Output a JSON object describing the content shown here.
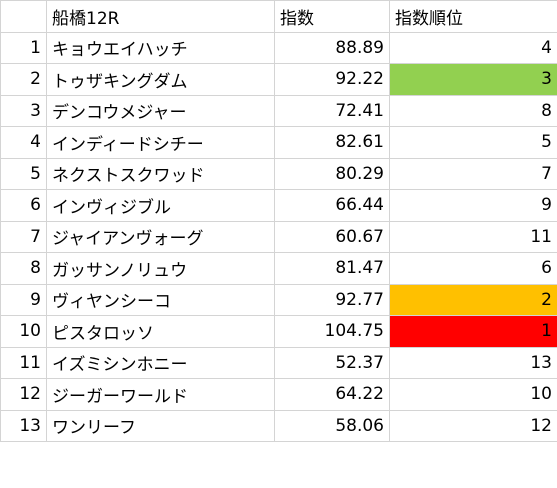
{
  "header": {
    "num": "",
    "name": "船橋12R",
    "index": "指数",
    "rank": "指数順位"
  },
  "rows": [
    {
      "num": "1",
      "name": "キョウエイハッチ",
      "index": "88.89",
      "rank": "4",
      "highlight": ""
    },
    {
      "num": "2",
      "name": "トゥザキングダム",
      "index": "92.22",
      "rank": "3",
      "highlight": "green"
    },
    {
      "num": "3",
      "name": "デンコウメジャー",
      "index": "72.41",
      "rank": "8",
      "highlight": ""
    },
    {
      "num": "4",
      "name": "インディードシチー",
      "index": "82.61",
      "rank": "5",
      "highlight": ""
    },
    {
      "num": "5",
      "name": "ネクストスクワッド",
      "index": "80.29",
      "rank": "7",
      "highlight": ""
    },
    {
      "num": "6",
      "name": "インヴィジブル",
      "index": "66.44",
      "rank": "9",
      "highlight": ""
    },
    {
      "num": "7",
      "name": "ジャイアンヴォーグ",
      "index": "60.67",
      "rank": "11",
      "highlight": ""
    },
    {
      "num": "8",
      "name": "ガッサンノリュウ",
      "index": "81.47",
      "rank": "6",
      "highlight": ""
    },
    {
      "num": "9",
      "name": "ヴィヤンシーコ",
      "index": "92.77",
      "rank": "2",
      "highlight": "orange"
    },
    {
      "num": "10",
      "name": "ピスタロッソ",
      "index": "104.75",
      "rank": "1",
      "highlight": "red"
    },
    {
      "num": "11",
      "name": "イズミシンホニー",
      "index": "52.37",
      "rank": "13",
      "highlight": ""
    },
    {
      "num": "12",
      "name": "ジーガーワールド",
      "index": "64.22",
      "rank": "10",
      "highlight": ""
    },
    {
      "num": "13",
      "name": "ワンリーフ",
      "index": "58.06",
      "rank": "12",
      "highlight": ""
    }
  ],
  "colors": {
    "green": "#92d050",
    "orange": "#ffc000",
    "red": "#ff0000",
    "gridline": "#d4d4d4"
  }
}
